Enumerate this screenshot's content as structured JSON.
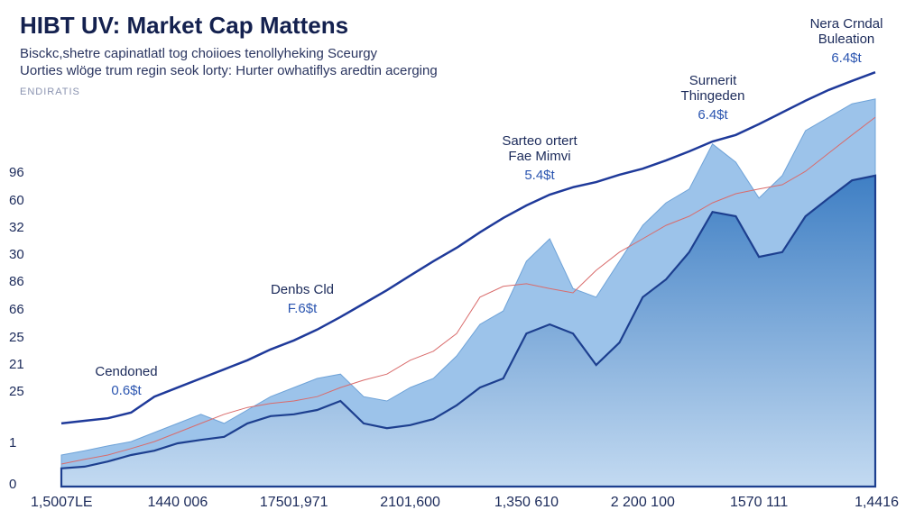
{
  "chart_data": {
    "type": "area",
    "title": "HIBT UV: Market Cap Mattens",
    "subtitle": [
      "Bisckc,shetre capinatlatl tog choiioes tenollyheking Sceurgy",
      "Uorties wlöge trum regin seok lorty: Hurter owhatiflys aredtin acerging"
    ],
    "source": "ENDIRATIS",
    "y_labels": [
      "96",
      "60",
      "32",
      "30",
      "86",
      "66",
      "25",
      "21",
      "25",
      "1",
      "0"
    ],
    "categories": [
      "1,5007LE",
      null,
      null,
      null,
      null,
      "1440 006",
      null,
      null,
      null,
      null,
      "17501,971",
      null,
      null,
      null,
      null,
      "2101,600",
      null,
      null,
      null,
      null,
      "1,350 610",
      null,
      null,
      null,
      null,
      "2 200 100",
      null,
      null,
      null,
      null,
      "1570 111",
      null,
      null,
      null,
      null,
      "1,4416"
    ],
    "ylim": [
      0,
      100
    ],
    "series": [
      {
        "color": "#9cc3ea",
        "values": [
          7.3,
          8.3,
          9.4,
          10.4,
          12.5,
          14.6,
          16.7,
          14.6,
          17.7,
          20.8,
          22.9,
          25,
          26,
          20.8,
          19.8,
          22.9,
          25,
          30.2,
          37.5,
          40.6,
          52.1,
          57.3,
          45.8,
          43.8,
          52.1,
          60.4,
          65.6,
          68.8,
          79.2,
          75,
          66.7,
          71.9,
          82.3,
          85.4,
          88.5,
          89.6
        ]
      },
      {
        "color": "#1d3f8f",
        "values": [
          4.2,
          4.6,
          5.8,
          7.3,
          8.3,
          10,
          10.8,
          11.5,
          14.6,
          16.3,
          16.7,
          17.7,
          19.8,
          14.6,
          13.5,
          14.2,
          15.6,
          18.8,
          22.9,
          25,
          35.4,
          37.5,
          35.4,
          28.1,
          33.3,
          43.8,
          47.9,
          54.2,
          63.5,
          62.5,
          53.1,
          54.2,
          62.5,
          66.7,
          70.8,
          71.9
        ]
      },
      {
        "color": "#d96b6b",
        "values": [
          5.2,
          6.3,
          7.3,
          8.8,
          10.4,
          12.5,
          14.6,
          16.7,
          18.3,
          19.2,
          19.8,
          20.8,
          22.9,
          24.6,
          26,
          29.2,
          31.3,
          35.4,
          43.8,
          46.3,
          46.9,
          45.8,
          44.8,
          50,
          54.2,
          57.3,
          60.4,
          62.5,
          65.6,
          67.7,
          68.8,
          69.8,
          72.9,
          77.1,
          81.3,
          85.4
        ]
      },
      {
        "color": "#1f3a9a",
        "values": [
          14.6,
          15.2,
          15.8,
          17.1,
          20.8,
          22.9,
          25,
          27.1,
          29.2,
          31.7,
          33.8,
          36.3,
          39.2,
          42.3,
          45.4,
          48.8,
          52.1,
          55.2,
          58.8,
          62.1,
          65,
          67.5,
          69.2,
          70.4,
          72.1,
          73.5,
          75.4,
          77.5,
          79.8,
          81.3,
          83.8,
          86.5,
          89.2,
          91.7,
          93.8,
          95.8
        ]
      }
    ],
    "annotations": [
      {
        "lines": [
          "Cendoned"
        ],
        "value": "0.6$t"
      },
      {
        "lines": [
          "Denbs Cld"
        ],
        "value": "F.6$t"
      },
      {
        "lines": [
          "Sarteo ortert",
          "Fae Mimvi"
        ],
        "value": "5.4$t"
      },
      {
        "lines": [
          "Surnerit",
          "Thingeden"
        ],
        "value": "6.4$t"
      },
      {
        "lines": [
          "Nera Crndal",
          "Buleation"
        ],
        "value": "6.4$t"
      }
    ]
  }
}
